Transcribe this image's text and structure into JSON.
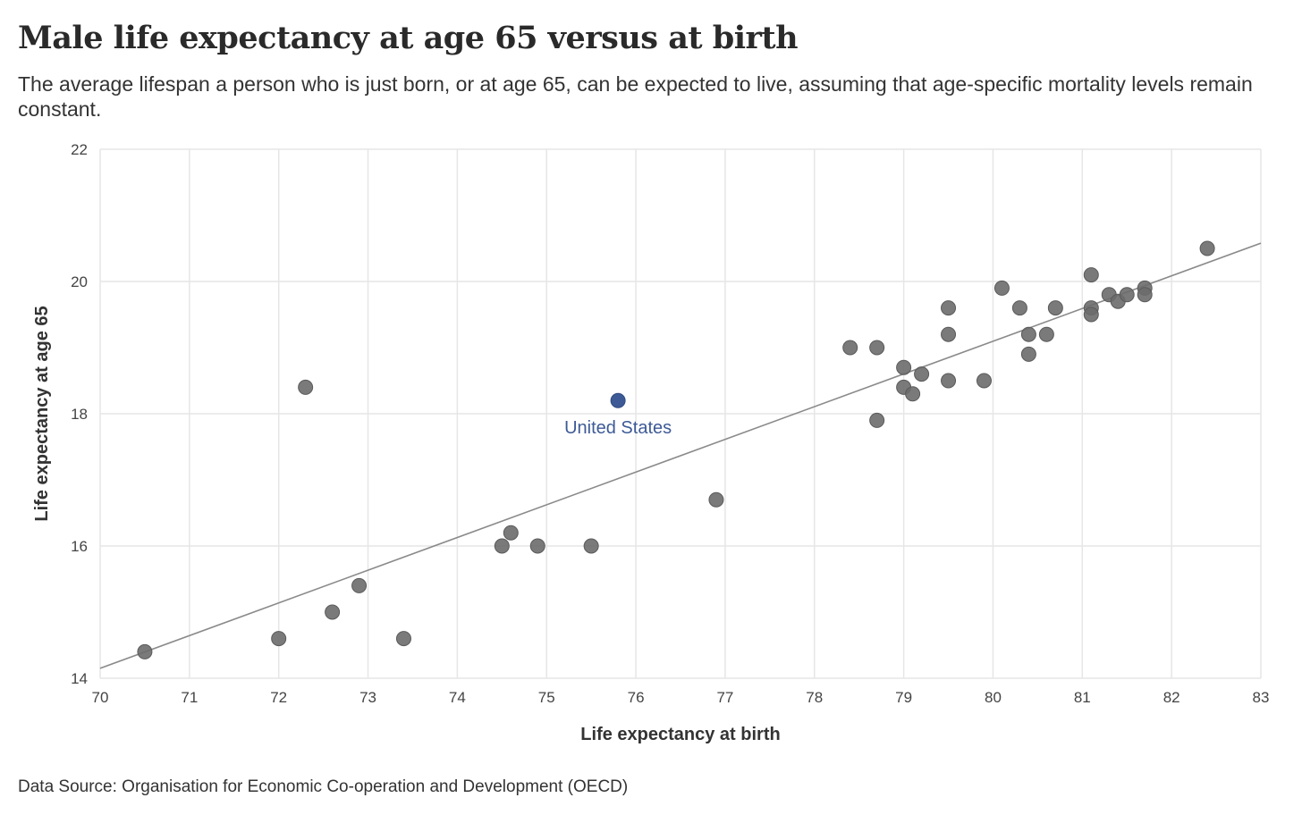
{
  "chart_data": {
    "type": "scatter",
    "title": "Male life expectancy at age 65 versus at birth",
    "subtitle": "The average lifespan a person who is just born, or at age 65, can be expected to live, assuming that age-specific mortality levels remain constant.",
    "xlabel": "Life expectancy at birth",
    "ylabel": "Life expectancy at age 65",
    "xlim": [
      70,
      83
    ],
    "ylim": [
      14,
      22
    ],
    "xticks": [
      "70",
      "71",
      "72",
      "73",
      "74",
      "75",
      "76",
      "77",
      "78",
      "79",
      "80",
      "81",
      "82",
      "83"
    ],
    "yticks": [
      "14",
      "16",
      "18",
      "20",
      "22"
    ],
    "grid": true,
    "points": [
      [
        70.5,
        14.4
      ],
      [
        72.0,
        14.6
      ],
      [
        72.3,
        18.4
      ],
      [
        72.6,
        15.0
      ],
      [
        72.9,
        15.4
      ],
      [
        73.4,
        14.6
      ],
      [
        74.5,
        16.0
      ],
      [
        74.6,
        16.2
      ],
      [
        74.9,
        16.0
      ],
      [
        75.5,
        16.0
      ],
      [
        76.9,
        16.7
      ],
      [
        78.4,
        19.0
      ],
      [
        78.7,
        19.0
      ],
      [
        78.7,
        17.9
      ],
      [
        79.0,
        18.7
      ],
      [
        79.0,
        18.4
      ],
      [
        79.1,
        18.3
      ],
      [
        79.2,
        18.6
      ],
      [
        79.5,
        19.6
      ],
      [
        79.5,
        19.2
      ],
      [
        79.5,
        18.5
      ],
      [
        79.9,
        18.5
      ],
      [
        80.1,
        19.9
      ],
      [
        80.3,
        19.6
      ],
      [
        80.4,
        19.2
      ],
      [
        80.4,
        18.9
      ],
      [
        80.6,
        19.2
      ],
      [
        80.7,
        19.6
      ],
      [
        81.1,
        20.1
      ],
      [
        81.1,
        19.6
      ],
      [
        81.1,
        19.5
      ],
      [
        81.3,
        19.8
      ],
      [
        81.4,
        19.7
      ],
      [
        81.5,
        19.8
      ],
      [
        81.7,
        19.9
      ],
      [
        81.7,
        19.8
      ],
      [
        82.4,
        20.5
      ]
    ],
    "highlight": {
      "label": "United States",
      "x": 75.8,
      "y": 18.2
    },
    "trendline": [
      [
        70,
        14.15
      ],
      [
        83,
        20.58
      ]
    ],
    "colors": {
      "point": "#6b6b6b",
      "highlight": "#3d5a96",
      "trend": "#8a8a8a",
      "grid": "#e6e6e6"
    }
  },
  "source": "Data Source: Organisation for Economic Co-operation and Development (OECD)"
}
